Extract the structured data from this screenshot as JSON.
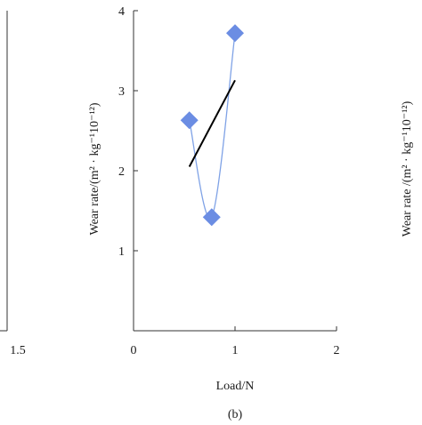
{
  "chart_data": [
    {
      "type": "scatter",
      "panel_label": "",
      "title": "",
      "xlabel": "",
      "ylabel": "",
      "visible_x_ticks": [
        "1.5"
      ],
      "xlim": [
        0,
        1.5
      ],
      "partially_visible": true
    },
    {
      "type": "scatter",
      "panel_label": "(b)",
      "title": "",
      "xlabel": "Load/N",
      "ylabel": "Wear rate/(m² · kg⁻¹10⁻¹²)",
      "xlim": [
        0,
        2
      ],
      "ylim": [
        0,
        4
      ],
      "x_ticks": [
        {
          "value": 0,
          "label": "0"
        },
        {
          "value": 1,
          "label": "1"
        },
        {
          "value": 2,
          "label": "2"
        }
      ],
      "y_ticks": [
        {
          "value": 1,
          "label": "1"
        },
        {
          "value": 2,
          "label": "2"
        },
        {
          "value": 3,
          "label": "3"
        },
        {
          "value": 4,
          "label": "4"
        }
      ],
      "grid": false,
      "series": [
        {
          "marker": "diamond",
          "color": "#6b8de3",
          "curve_color": "#7fa2e6",
          "x": [
            0.55,
            0.77,
            1.0
          ],
          "y": [
            2.63,
            1.42,
            3.72
          ]
        }
      ],
      "fit_line": {
        "color": "#000000",
        "x": [
          0.55,
          1.0
        ],
        "y": [
          2.05,
          3.13
        ]
      }
    },
    {
      "type": "scatter",
      "panel_label": "",
      "title": "",
      "xlabel": "",
      "ylabel": "Wear rate /(m² · kg⁻¹10⁻¹²)",
      "partially_visible": true
    }
  ]
}
